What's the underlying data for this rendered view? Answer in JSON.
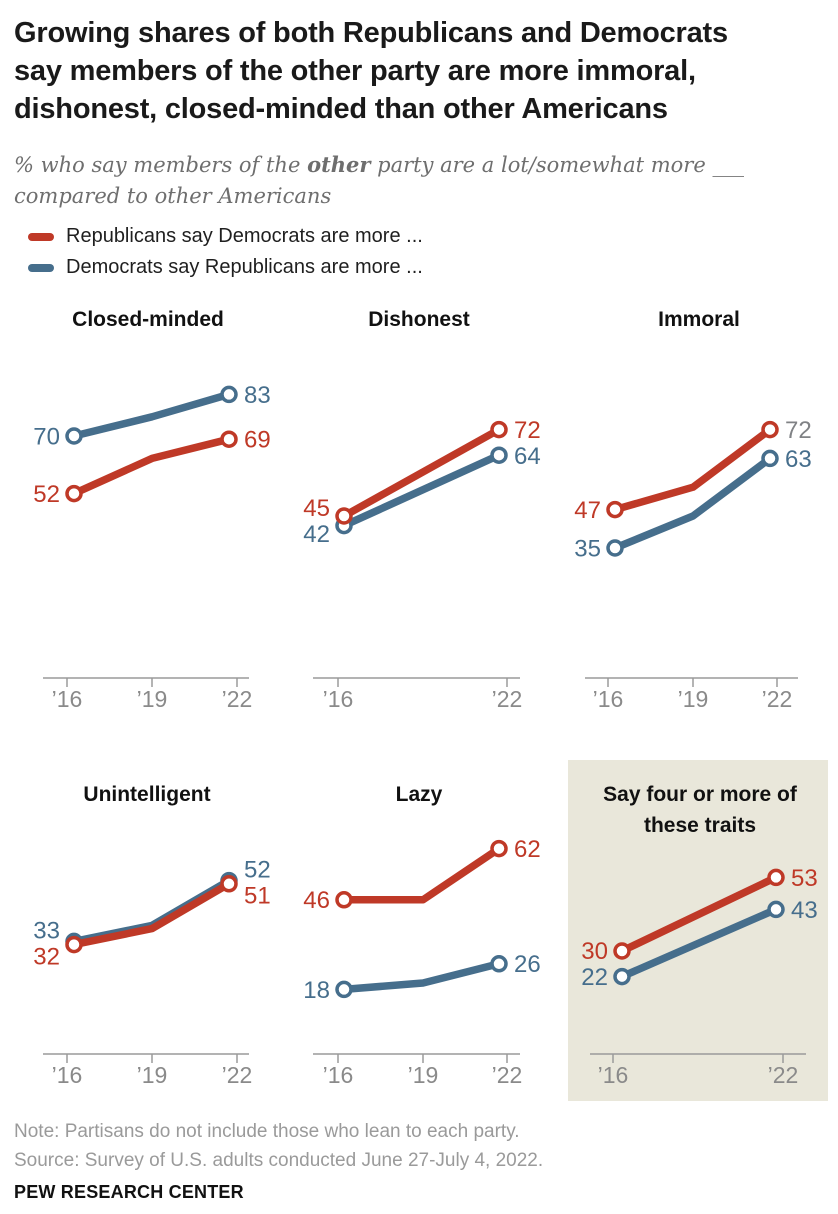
{
  "header": {
    "title_lines": [
      "Growing shares of both Republicans and Democrats",
      "say members of the other party are more immoral,",
      "dishonest, closed-minded than other Americans"
    ]
  },
  "subtitle": {
    "prefix": "% who say members of the ",
    "bold": "other",
    "suffix": " party are a lot/somewhat more ___",
    "line2": "compared to other Americans"
  },
  "legend": {
    "items": [
      {
        "label": "Republicans say Democrats are more ...",
        "color": "#bf3927"
      },
      {
        "label": "Democrats say Republicans are more ...",
        "color": "#466e8c"
      }
    ]
  },
  "colors": {
    "republican": "#bf3927",
    "democrat": "#466e8c",
    "axis": "#9a9a9a",
    "tick_label": "#8a8a8a",
    "muted_value_label": "#808285",
    "highlight_panel_bg": "#e9e7da",
    "title_text": "#1a1a1a",
    "subtitle_text": "#6e6e6e",
    "note_text": "#9a9a9a"
  },
  "chart_data": {
    "type": "line",
    "value_unit": "%",
    "ylim": [
      0,
      100
    ],
    "panels": [
      {
        "id": "closed-minded",
        "title": "Closed-minded",
        "highlighted": false,
        "x": [
          2016,
          2019,
          2022
        ],
        "tick_labels": [
          "’16",
          "’19",
          "’22"
        ],
        "series": [
          {
            "party": "republican",
            "name": "Republicans say Democrats are more ...",
            "values": [
              52,
              63,
              69
            ]
          },
          {
            "party": "democrat",
            "name": "Democrats say Republicans are more ...",
            "values": [
              70,
              76,
              83
            ]
          }
        ]
      },
      {
        "id": "dishonest",
        "title": "Dishonest",
        "highlighted": false,
        "x": [
          2016,
          2022
        ],
        "tick_labels": [
          "’16",
          "’22"
        ],
        "series": [
          {
            "party": "republican",
            "name": "Republicans say Democrats are more ...",
            "values": [
              45,
              72
            ]
          },
          {
            "party": "democrat",
            "name": "Democrats say Republicans are more ...",
            "values": [
              42,
              64
            ]
          }
        ]
      },
      {
        "id": "immoral",
        "title": "Immoral",
        "highlighted": false,
        "x": [
          2016,
          2019,
          2022
        ],
        "tick_labels": [
          "’16",
          "’19",
          "’22"
        ],
        "series": [
          {
            "party": "republican",
            "name": "Republicans say Democrats are more ...",
            "values": [
              47,
              54,
              72
            ],
            "end_label_muted": true
          },
          {
            "party": "democrat",
            "name": "Democrats say Republicans are more ...",
            "values": [
              35,
              45,
              63
            ]
          }
        ]
      },
      {
        "id": "unintelligent",
        "title": "Unintelligent",
        "highlighted": false,
        "x": [
          2016,
          2019,
          2022
        ],
        "tick_labels": [
          "’16",
          "’19",
          "’22"
        ],
        "series": [
          {
            "party": "republican",
            "name": "Republicans say Democrats are more ...",
            "values": [
              32,
              37,
              51
            ]
          },
          {
            "party": "democrat",
            "name": "Democrats say Republicans are more ...",
            "values": [
              33,
              38,
              52
            ]
          }
        ]
      },
      {
        "id": "lazy",
        "title": "Lazy",
        "highlighted": false,
        "x": [
          2016,
          2019,
          2022
        ],
        "tick_labels": [
          "’16",
          "’19",
          "’22"
        ],
        "series": [
          {
            "party": "republican",
            "name": "Republicans say Democrats are more ...",
            "values": [
              46,
              46,
              62
            ]
          },
          {
            "party": "democrat",
            "name": "Democrats say Republicans are more ...",
            "values": [
              18,
              20,
              26
            ]
          }
        ]
      },
      {
        "id": "four-or-more",
        "title": "Say four or more of these traits",
        "highlighted": true,
        "x": [
          2016,
          2022
        ],
        "tick_labels": [
          "’16",
          "’22"
        ],
        "series": [
          {
            "party": "republican",
            "name": "Republicans say Democrats are more ...",
            "values": [
              30,
              53
            ]
          },
          {
            "party": "democrat",
            "name": "Democrats say Republicans are more ...",
            "values": [
              22,
              43
            ]
          }
        ]
      }
    ]
  },
  "footer": {
    "note": "Note: Partisans do not include those who lean to each party.",
    "source": "Source: Survey of U.S. adults conducted June 27-July 4, 2022.",
    "brand": "PEW RESEARCH CENTER"
  }
}
